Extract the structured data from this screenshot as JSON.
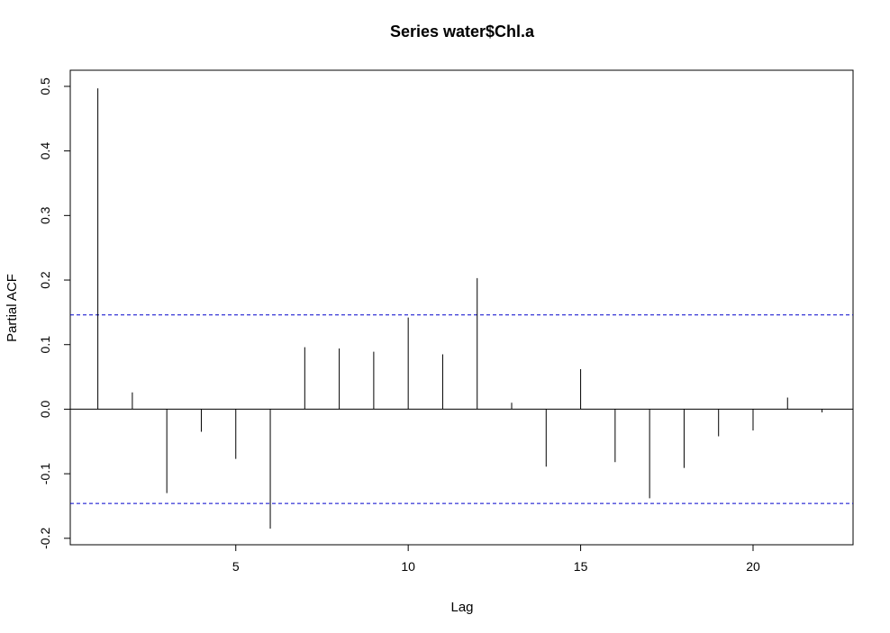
{
  "chart_data": {
    "type": "bar",
    "style": "pacf-stem",
    "title": "Series  water$Chl.a",
    "xlabel": "Lag",
    "ylabel": "Partial ACF",
    "x": [
      1,
      2,
      3,
      4,
      5,
      6,
      7,
      8,
      9,
      10,
      11,
      12,
      13,
      14,
      15,
      16,
      17,
      18,
      19,
      20,
      21,
      22
    ],
    "values": [
      0.497,
      0.026,
      -0.13,
      -0.035,
      -0.077,
      -0.185,
      0.096,
      0.094,
      0.089,
      0.142,
      0.085,
      0.203,
      0.01,
      -0.089,
      0.062,
      -0.082,
      -0.138,
      -0.091,
      -0.042,
      -0.033,
      0.018,
      -0.005
    ],
    "xlim": [
      0.2,
      22.9
    ],
    "ylim": [
      -0.21,
      0.525
    ],
    "x_ticks": [
      5,
      10,
      15,
      20
    ],
    "y_ticks": [
      -0.2,
      -0.1,
      0.0,
      0.1,
      0.2,
      0.3,
      0.4,
      0.5
    ],
    "x_tick_labels": [
      "5",
      "10",
      "15",
      "20"
    ],
    "y_tick_labels": [
      "-0.2",
      "-0.1",
      "0.0",
      "0.1",
      "0.2",
      "0.3",
      "0.4",
      "0.5"
    ],
    "confidence_bounds": [
      0.146,
      -0.146
    ],
    "colors": {
      "stems": "#000000",
      "bounds": "#0000cc",
      "zero_line": "#000000"
    },
    "grid": false,
    "legend": "none"
  }
}
